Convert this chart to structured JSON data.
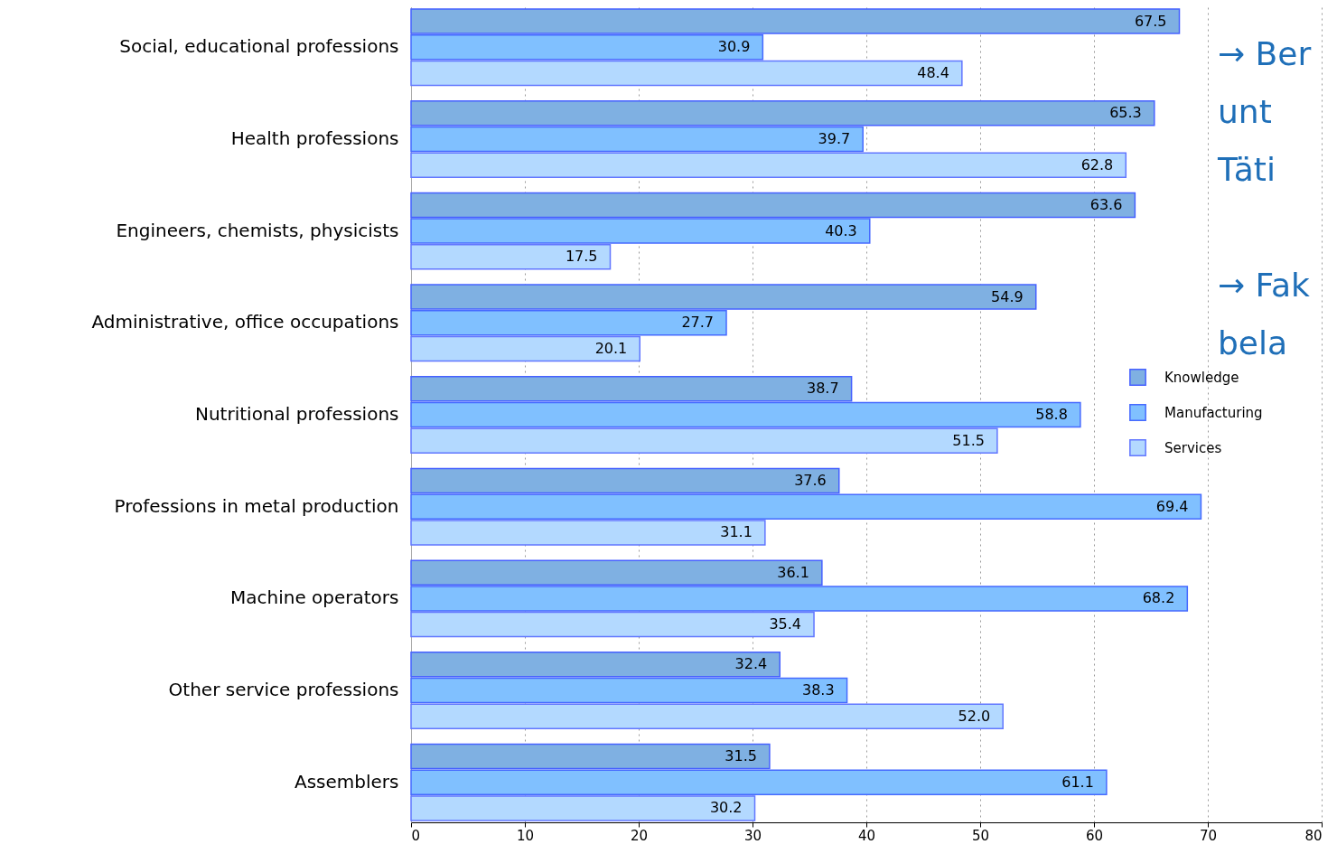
{
  "chart_data": {
    "type": "bar",
    "orientation": "horizontal",
    "categories": [
      "Social, educational professions",
      "Health professions",
      "Engineers, chemists, physicists",
      "Administrative, office occupations",
      "Nutritional professions",
      "Professions in metal production",
      "Machine operators",
      "Other service professions",
      "Assemblers"
    ],
    "series": [
      {
        "name": "Knowledge",
        "color": "#7fb0e2",
        "values": [
          67.5,
          65.3,
          63.6,
          54.9,
          38.7,
          37.6,
          36.1,
          32.4,
          31.5
        ],
        "value_labels": [
          "67.5",
          "65.3",
          "63.6",
          "54.9",
          "38.7",
          "37.6",
          "36.1",
          "32.4",
          "31.5"
        ]
      },
      {
        "name": "Manufacturing",
        "color": "#80c0ff",
        "values": [
          30.9,
          39.7,
          40.3,
          27.7,
          58.8,
          69.4,
          68.2,
          38.3,
          61.1
        ],
        "value_labels": [
          "30.9",
          "39.7",
          "40.3",
          "27.7",
          "58.8",
          "69.4",
          "68.2",
          "38.3",
          "61.1"
        ]
      },
      {
        "name": "Services",
        "color": "#b3d9ff",
        "values": [
          48.4,
          62.8,
          17.5,
          20.1,
          51.5,
          31.1,
          35.4,
          52.0,
          30.2
        ],
        "value_labels": [
          "48.4",
          "62.8",
          "17.5",
          "20.1",
          "51.5",
          "31.1",
          "35.4",
          "52.0",
          "30.2"
        ]
      }
    ],
    "xlim": [
      0,
      80
    ],
    "xticks": [
      0,
      10,
      20,
      30,
      40,
      50,
      60,
      70,
      80
    ],
    "grid": "x",
    "legend": "right",
    "annotations": [
      "→ Ber\nunt\nTäti",
      "→ Fak\nbela"
    ]
  }
}
